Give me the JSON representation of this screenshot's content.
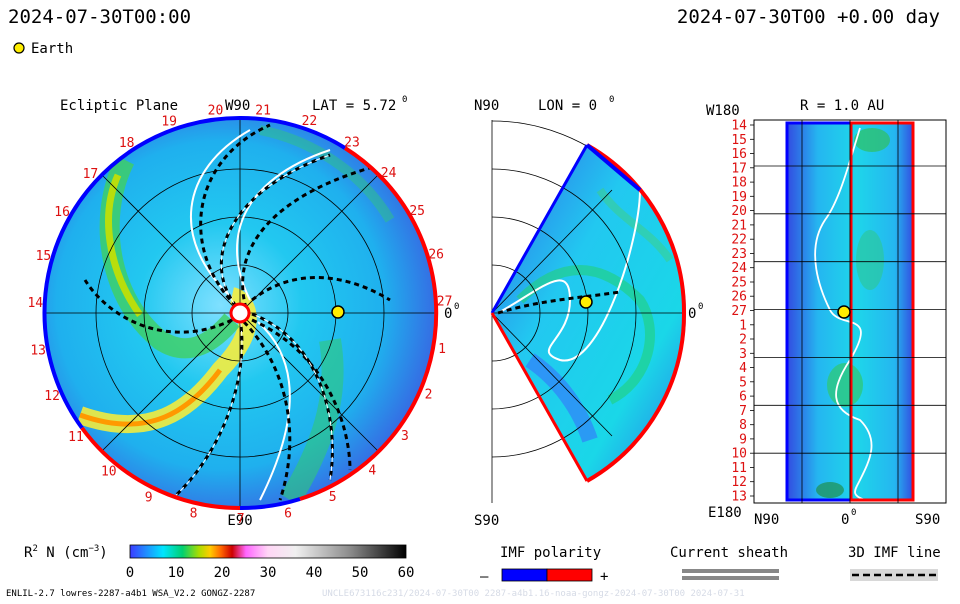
{
  "header": {
    "datetime_left": "2024-07-30T00:00",
    "datetime_right": "2024-07-30T00 +0.00 day",
    "legend_label": "Earth",
    "legend_color": "#ffee00"
  },
  "ecliptic": {
    "title": "Ecliptic Plane",
    "top_label": "W90",
    "bottom_label": "E90",
    "right_label": "0",
    "right_sup": "0",
    "lat_label": "LAT = 5.72",
    "lat_sup": "0",
    "rotation_numbers": [
      "20",
      "21",
      "22",
      "23",
      "24",
      "25",
      "26",
      "27",
      "1",
      "2",
      "3",
      "4",
      "5",
      "6",
      "7",
      "8",
      "9",
      "10",
      "11",
      "12",
      "13",
      "14",
      "15",
      "16",
      "17",
      "18",
      "19"
    ]
  },
  "meridional": {
    "top_label": "N90",
    "bottom_label": "S90",
    "lon_label": "LON = 0",
    "lon_sup": "0",
    "right_label": "0",
    "right_sup": "0"
  },
  "radial": {
    "title": "R = 1.0 AU",
    "top_left": "W180",
    "bottom_left": "E180",
    "x_left": "N90",
    "x_mid": "0",
    "x_mid_sup": "0",
    "x_right": "S90",
    "y_labels": [
      "14",
      "15",
      "16",
      "17",
      "18",
      "19",
      "20",
      "21",
      "22",
      "23",
      "24",
      "25",
      "26",
      "27",
      "1",
      "2",
      "3",
      "4",
      "5",
      "6",
      "7",
      "8",
      "9",
      "10",
      "11",
      "12",
      "13"
    ]
  },
  "colorbar": {
    "label": "R",
    "label_sup": "2",
    "label_rest": " N (cm",
    "label_exp": "−3",
    "label_close": ")",
    "ticks": [
      "0",
      "10",
      "20",
      "30",
      "40",
      "50",
      "60"
    ]
  },
  "imf_legend": {
    "title": "IMF polarity",
    "minus": "–",
    "plus": "+",
    "minus_color": "#0000ff",
    "plus_color": "#ff0000"
  },
  "current_sheath": {
    "title": "Current sheath"
  },
  "imf_line": {
    "title": "3D IMF line"
  },
  "footer": {
    "left": "ENLIL-2.7 lowres-2287-a4b1 WSA_V2.2 GONGZ-2287",
    "right": "UNCLE673116c231/2024-07-30T00 2287-a4b1.16-noaa-gongz-2024-07-30T00 2024-07-31"
  }
}
